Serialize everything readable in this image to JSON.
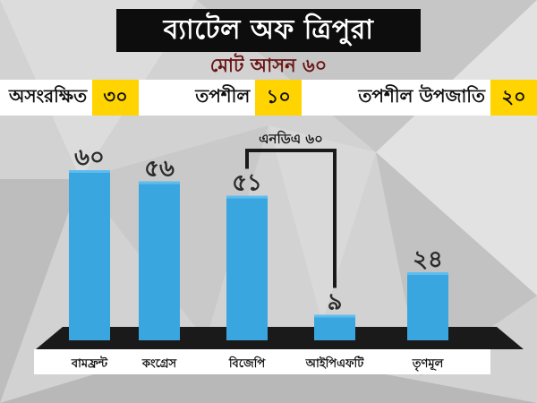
{
  "header": {
    "title": "ব্যাটেল অফ ত্রিপুরা",
    "subtitle": "মোট আসন ৬০"
  },
  "seats": [
    {
      "label": "অসংরক্ষিত",
      "value": "৩০"
    },
    {
      "label": "তপশীল",
      "value": "১০"
    },
    {
      "label": "তপশীল উপজাতি",
      "value": "২০"
    }
  ],
  "colors": {
    "bar": "#3aa6e0",
    "bar_top": "#5cbdee",
    "highlight": "#ffd400",
    "title_bg": "#0d0d0d",
    "subtitle": "#6b1414",
    "platform": "#1a1a1a",
    "label_strip": "#ffffff"
  },
  "chart_data": {
    "type": "bar",
    "categories": [
      "বামফ্রন্ট",
      "কংগ্রেস",
      "বিজেপি",
      "আইপিএফটি",
      "তৃণমূল"
    ],
    "values": [
      60,
      56,
      51,
      9,
      24
    ],
    "value_labels": [
      "৬০",
      "৫৬",
      "৫১",
      "৯",
      "২৪"
    ],
    "ylim": [
      0,
      60
    ],
    "grid": false,
    "annotations": [
      {
        "text": "এনডিএ ৬০",
        "links": [
          "বিজেপি",
          "আইপিএফটি"
        ]
      }
    ]
  }
}
